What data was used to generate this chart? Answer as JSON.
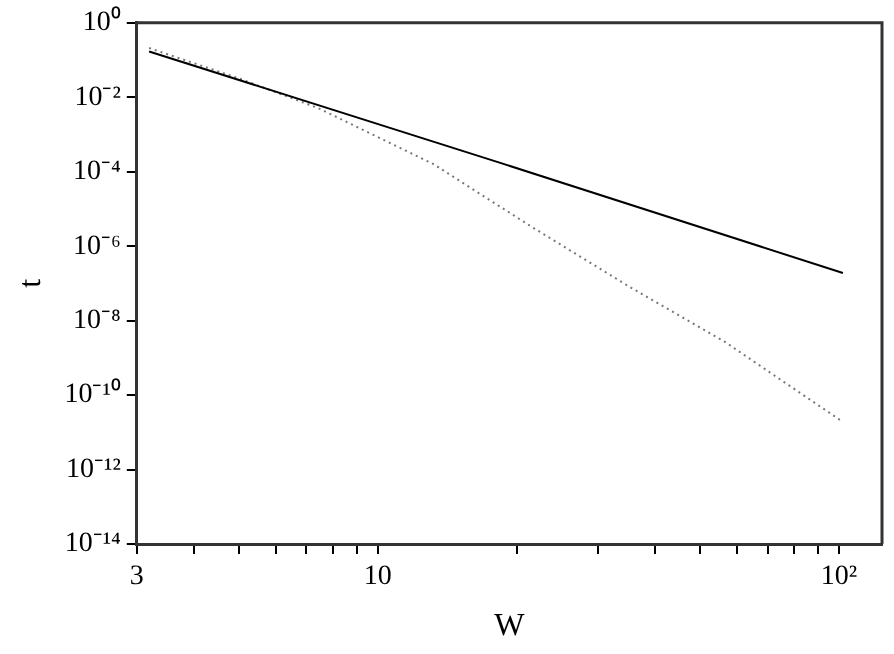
{
  "chart_data": {
    "type": "line",
    "xlabel": "W",
    "ylabel": "t",
    "log": "xy",
    "marker": "none",
    "legend": false,
    "grid": false,
    "xlim": [
      3,
      124
    ],
    "xticks": [
      {
        "value": 3,
        "label": "3"
      },
      {
        "value": 4,
        "label": null
      },
      {
        "value": 5,
        "label": null
      },
      {
        "value": 6,
        "label": null
      },
      {
        "value": 7,
        "label": null
      },
      {
        "value": 8,
        "label": null
      },
      {
        "value": 9,
        "label": null
      },
      {
        "value": 10,
        "label": "10"
      },
      {
        "value": 20,
        "label": null
      },
      {
        "value": 30,
        "label": null
      },
      {
        "value": 40,
        "label": null
      },
      {
        "value": 50,
        "label": null
      },
      {
        "value": 60,
        "label": null
      },
      {
        "value": 70,
        "label": null
      },
      {
        "value": 80,
        "label": null
      },
      {
        "value": 90,
        "label": null
      },
      {
        "value": 100,
        "label": "10²"
      }
    ],
    "ylim": [
      1e-14,
      1
    ],
    "yticks": [
      {
        "value": 1e-14,
        "label": "10⁻¹⁴"
      },
      {
        "value": 1e-12,
        "label": "10⁻¹²"
      },
      {
        "value": 1e-10,
        "label": "10⁻¹⁰"
      },
      {
        "value": 1e-08,
        "label": "10⁻⁸"
      },
      {
        "value": 1e-06,
        "label": "10⁻⁶"
      },
      {
        "value": 0.0001,
        "label": "10⁻⁴"
      },
      {
        "value": 0.01,
        "label": "10⁻²"
      },
      {
        "value": 1,
        "label": "10⁰"
      }
    ],
    "series": [
      {
        "color": "#000000",
        "line_style": "solid",
        "x": [
          3.19,
          18,
          102
        ],
        "values": [
          0.17,
          0.00019,
          1.9e-07
        ]
      },
      {
        "color": "#777777",
        "line_style": "dotted",
        "x": [
          3.19,
          5.0,
          7.4,
          13.2,
          21.4,
          34.7,
          56.3,
          102
        ],
        "values": [
          0.21,
          0.032,
          0.0052,
          0.00016,
          3.5e-06,
          8.9e-08,
          2.8e-09,
          1.9e-11
        ]
      }
    ]
  }
}
